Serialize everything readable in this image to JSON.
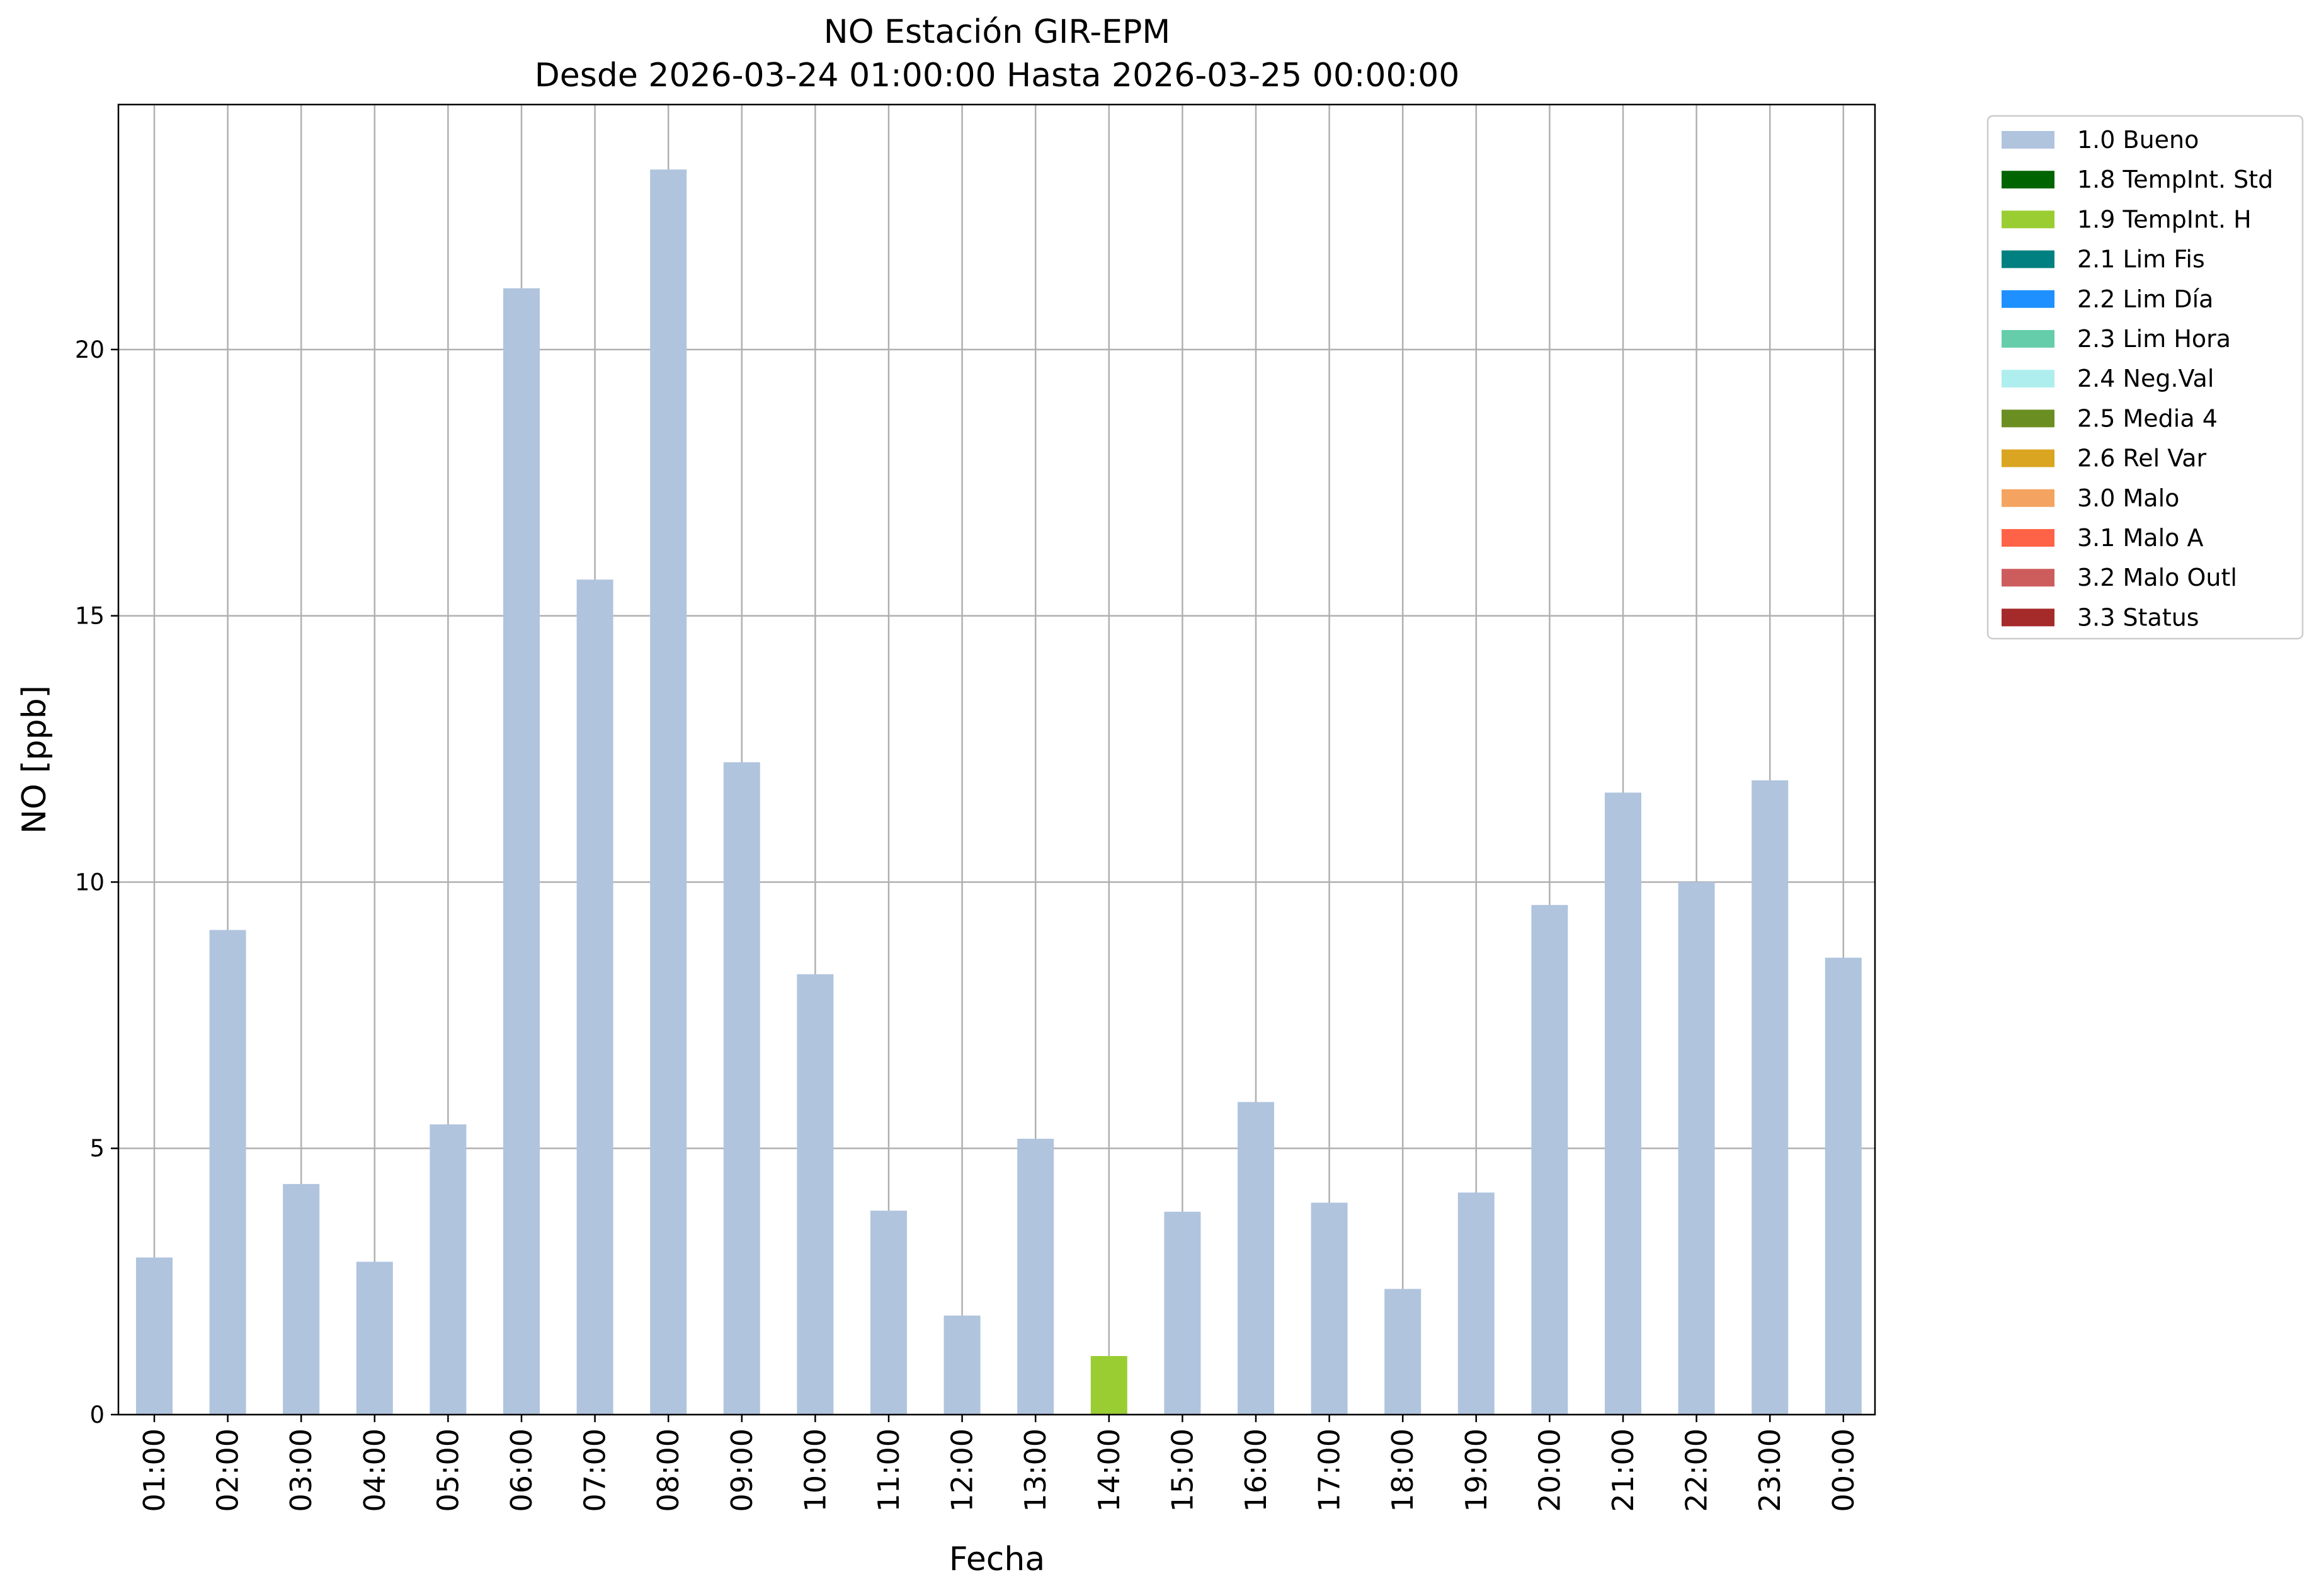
{
  "chart_data": {
    "type": "bar",
    "title": "NO Estación GIR-EPM",
    "subtitle": "Desde 2026-03-24 01:00:00 Hasta 2026-03-25 00:00:00",
    "xlabel": "Fecha",
    "ylabel": "NO [ppb]",
    "ylim": [
      0,
      24.6
    ],
    "yticks": [
      0,
      5,
      10,
      15,
      20
    ],
    "grid": true,
    "legend_position": "outside-top-right",
    "categories": [
      "01:00",
      "02:00",
      "03:00",
      "04:00",
      "05:00",
      "06:00",
      "07:00",
      "08:00",
      "09:00",
      "10:00",
      "11:00",
      "12:00",
      "13:00",
      "14:00",
      "15:00",
      "16:00",
      "17:00",
      "18:00",
      "19:00",
      "20:00",
      "21:00",
      "22:00",
      "23:00",
      "00:00"
    ],
    "values": [
      2.95,
      9.1,
      4.33,
      2.87,
      5.45,
      21.15,
      15.68,
      23.38,
      12.25,
      8.27,
      3.83,
      1.86,
      5.18,
      1.1,
      3.81,
      5.87,
      3.98,
      2.36,
      4.17,
      9.57,
      11.68,
      10.0,
      11.91,
      8.58
    ],
    "flags": [
      "1.0 Bueno",
      "1.0 Bueno",
      "1.0 Bueno",
      "1.0 Bueno",
      "1.0 Bueno",
      "1.0 Bueno",
      "1.0 Bueno",
      "1.0 Bueno",
      "1.0 Bueno",
      "1.0 Bueno",
      "1.0 Bueno",
      "1.0 Bueno",
      "1.0 Bueno",
      "1.9 TempInt. H",
      "1.0 Bueno",
      "1.0 Bueno",
      "1.0 Bueno",
      "1.0 Bueno",
      "1.0 Bueno",
      "1.0 Bueno",
      "1.0 Bueno",
      "1.0 Bueno",
      "1.0 Bueno",
      "1.0 Bueno"
    ],
    "legend": [
      {
        "name": "1.0 Bueno",
        "color": "#b0c4de"
      },
      {
        "name": "1.8 TempInt. Std",
        "color": "#006400"
      },
      {
        "name": "1.9 TempInt. H",
        "color": "#9acd32"
      },
      {
        "name": "2.1 Lim Fis",
        "color": "#008080"
      },
      {
        "name": "2.2 Lim Día",
        "color": "#1e90ff"
      },
      {
        "name": "2.3 Lim Hora",
        "color": "#66cdaa"
      },
      {
        "name": "2.4 Neg.Val",
        "color": "#afeeee"
      },
      {
        "name": "2.5 Media 4",
        "color": "#6b8e23"
      },
      {
        "name": "2.6 Rel Var",
        "color": "#daa520"
      },
      {
        "name": "3.0 Malo",
        "color": "#f4a460"
      },
      {
        "name": "3.1 Malo A",
        "color": "#ff6347"
      },
      {
        "name": "3.2 Malo Outl",
        "color": "#cd5c5c"
      },
      {
        "name": "3.3 Status",
        "color": "#a52a2a"
      }
    ]
  }
}
